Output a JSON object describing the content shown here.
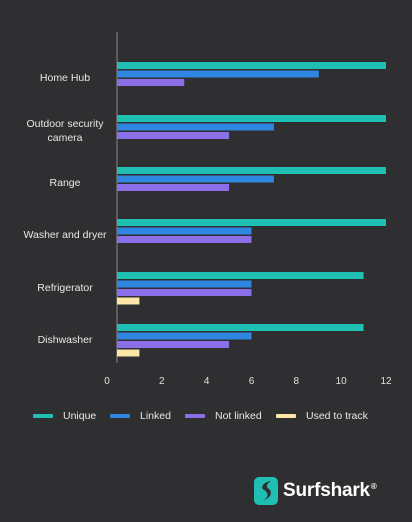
{
  "chart_data": {
    "type": "bar",
    "orientation": "horizontal",
    "categories": [
      "Home Hub",
      "Outdoor security camera",
      "Range",
      "Washer and dryer",
      "Refrigerator",
      "Dishwasher"
    ],
    "series": [
      {
        "name": "Unique",
        "color": "#1fbfb3",
        "values": [
          12,
          12,
          12,
          12,
          11,
          11
        ]
      },
      {
        "name": "Linked",
        "color": "#2f86e0",
        "values": [
          9,
          7,
          7,
          6,
          6,
          6
        ]
      },
      {
        "name": "Not linked",
        "color": "#8a6fe8",
        "values": [
          3,
          5,
          5,
          6,
          6,
          5
        ]
      },
      {
        "name": "Used to track",
        "color": "#fde7a8",
        "values": [
          0,
          0,
          0,
          0,
          1,
          1
        ]
      }
    ],
    "xticks": [
      0,
      2,
      4,
      6,
      8,
      10,
      12
    ],
    "xlim": [
      0,
      12
    ],
    "grid": false,
    "legend_position": "bottom"
  },
  "brand": {
    "name": "Surfshark",
    "reg_mark": "®",
    "logo_icon": "surfshark-logo-icon",
    "logo_color": "#1fbfb3"
  }
}
